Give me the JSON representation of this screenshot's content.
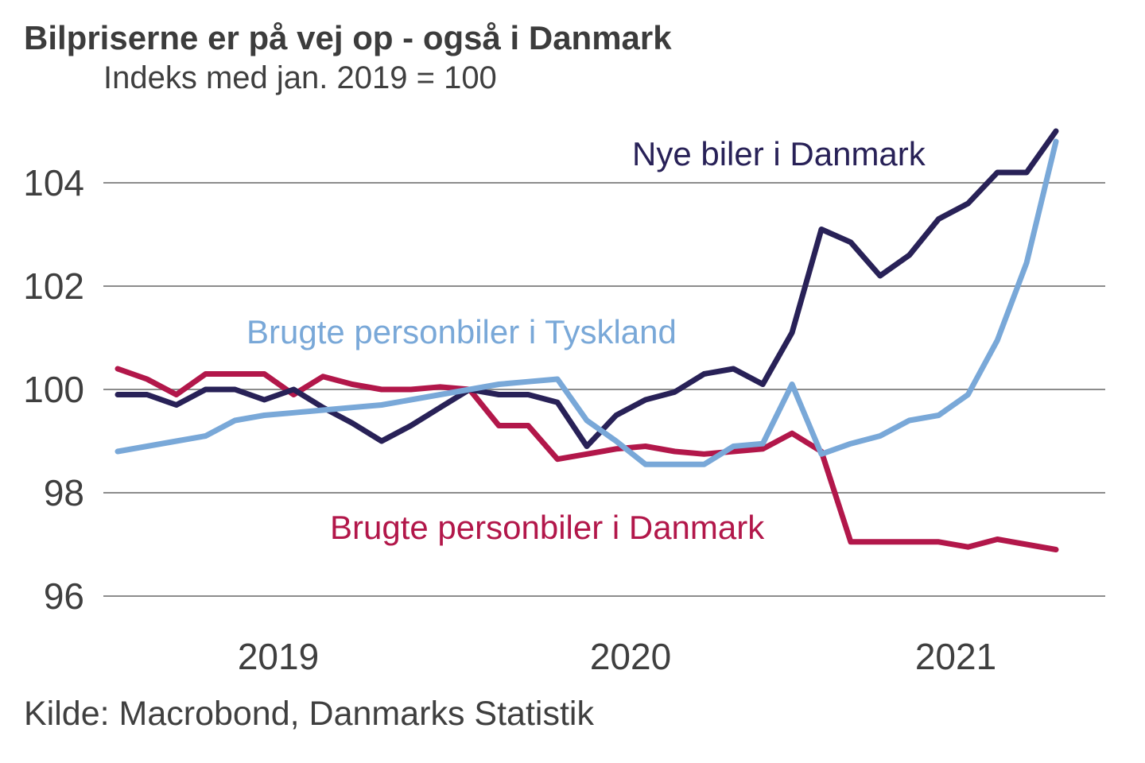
{
  "title": "Bilpriserne er på vej op - også i Danmark",
  "subtitle": "Indeks med jan. 2019 = 100",
  "source": "Kilde: Macrobond, Danmarks Statistik",
  "colors": {
    "grid": "#8c8c8c",
    "text": "#3f3f3f",
    "navy": "#282157",
    "light_blue": "#79a8d8",
    "crimson": "#b2174a"
  },
  "chart_data": {
    "type": "line",
    "title": "Bilpriserne er på vej op - også i Danmark",
    "subtitle": "Indeks med jan. 2019 = 100",
    "xlabel": "",
    "ylabel": "",
    "grid": "horizontal",
    "legend_position": "inline-annotations",
    "y_ticks": [
      96,
      98,
      100,
      102,
      104
    ],
    "ylim": [
      95.5,
      105.5
    ],
    "x_tick_labels": [
      "2019",
      "2020",
      "2021"
    ],
    "x_range_note": "monthly points, mid-2018 through 2021",
    "series": [
      {
        "name": "Nye biler i Danmark",
        "color": "#282157",
        "values": [
          99.9,
          99.9,
          99.7,
          100.0,
          100.0,
          99.8,
          100.0,
          99.65,
          99.35,
          99.0,
          99.3,
          99.65,
          100.0,
          99.9,
          99.9,
          99.75,
          98.9,
          99.5,
          99.8,
          99.95,
          100.3,
          100.4,
          100.1,
          101.1,
          103.1,
          102.85,
          102.2,
          102.6,
          103.3,
          103.6,
          104.2,
          104.2,
          105.0
        ]
      },
      {
        "name": "Brugte personbiler i Tyskland",
        "color": "#79a8d8",
        "values": [
          98.8,
          98.9,
          99.0,
          99.1,
          99.4,
          99.5,
          99.55,
          99.6,
          99.65,
          99.7,
          99.8,
          99.9,
          100.0,
          100.1,
          100.15,
          100.2,
          99.4,
          99.0,
          98.55,
          98.55,
          98.55,
          98.9,
          98.95,
          100.1,
          98.75,
          98.95,
          99.1,
          99.4,
          99.5,
          99.9,
          100.95,
          102.45,
          104.8
        ]
      },
      {
        "name": "Brugte personbiler i Danmark",
        "color": "#b2174a",
        "values": [
          100.4,
          100.2,
          99.9,
          100.3,
          100.3,
          100.3,
          99.9,
          100.25,
          100.1,
          100.0,
          100.0,
          100.05,
          100.0,
          99.3,
          99.3,
          98.65,
          98.75,
          98.85,
          98.9,
          98.8,
          98.75,
          98.8,
          98.85,
          99.15,
          98.8,
          97.05,
          97.05,
          97.05,
          97.05,
          96.95,
          97.1,
          97.0,
          96.9
        ]
      }
    ]
  }
}
